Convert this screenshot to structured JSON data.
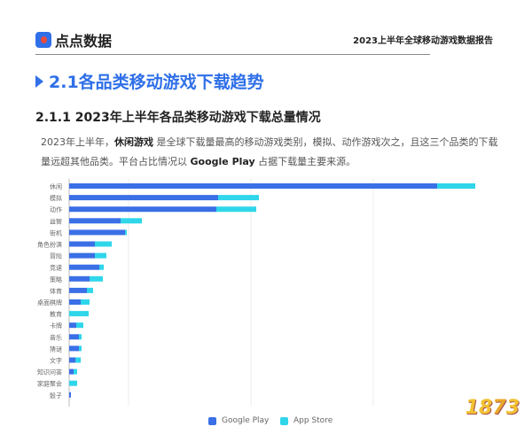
{
  "header": {
    "logo_text": "点点数据",
    "report_title": "2023上半年全球移动游戏数据报告"
  },
  "section": {
    "title": "2.1各品类移动游戏下载趋势"
  },
  "subsection": {
    "title": "2.1.1  2023年上半年各品类移动游戏下载总量情况"
  },
  "paragraph": {
    "part1": "2023年上半年，",
    "highlight1": "休闲游戏",
    "part2": " 是全球下载量最高的移动游戏类别，模拟、动作游戏次之，且这三个品类的下载量远超其他品类。平台占比情况以 ",
    "highlight2": "Google Play",
    "part3": " 占据下载量主要来源。"
  },
  "colors": {
    "google_play": "#3a6fe6",
    "app_store": "#2fd6ea",
    "accent": "#2f6fe8"
  },
  "chart_data": {
    "type": "bar",
    "orientation": "horizontal",
    "stacked": true,
    "categories": [
      "休闲",
      "模拟",
      "动作",
      "益智",
      "街机",
      "角色扮演",
      "冒险",
      "竞速",
      "策略",
      "体育",
      "桌面棋牌",
      "教育",
      "卡牌",
      "音乐",
      "猜谜",
      "文字",
      "知识问答",
      "家庭聚会",
      "骰子"
    ],
    "series": [
      {
        "name": "Google Play",
        "values": [
          415,
          168,
          166,
          58,
          63,
          29,
          29,
          34,
          23,
          20,
          13,
          0,
          8,
          11,
          11,
          7,
          5,
          0,
          2
        ]
      },
      {
        "name": "App Store",
        "values": [
          43,
          46,
          45,
          24,
          2,
          19,
          13,
          5,
          15,
          7,
          10,
          22,
          8,
          3,
          3,
          6,
          4,
          9,
          0
        ]
      }
    ],
    "legend_position": "bottom-right",
    "grid": true,
    "xlim": [
      0,
      480
    ]
  },
  "watermark": "1873"
}
